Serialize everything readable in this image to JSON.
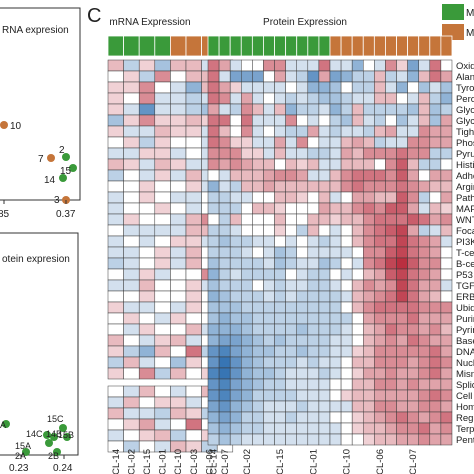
{
  "panel_letter": "C",
  "legend": {
    "items": [
      {
        "label": "ME",
        "color": "#3a9a3a"
      },
      {
        "label": "ME",
        "color": "#c5753a"
      }
    ]
  },
  "left_panels": {
    "top": {
      "title": "RNA expresion",
      "x_tick_labels": [
        "85",
        "0.37"
      ],
      "points": [
        {
          "label": "10",
          "group": "orange"
        },
        {
          "label": "7",
          "group": "orange"
        },
        {
          "label": "2",
          "group": "green"
        },
        {
          "label": "15",
          "group": "green"
        },
        {
          "label": "14",
          "group": "green"
        },
        {
          "label": "3",
          "group": "orange"
        }
      ]
    },
    "bottom": {
      "title": "otein expresion",
      "x_tick_labels": [
        "0.23",
        "0.24"
      ],
      "point_labels": [
        "A",
        "15C",
        "14C",
        "14B",
        "15B",
        "15A",
        "2A",
        "2B"
      ]
    }
  },
  "chart_data": {
    "type": "heatmap",
    "title": "",
    "blocks": [
      {
        "name": "mRNA Expression",
        "columns": [
          "CL-14",
          "CL-02",
          "CL-15",
          "CL-01",
          "CL-10",
          "CL-03",
          "CL-06",
          "CL-07"
        ]
      },
      {
        "name": "Protein Expression",
        "columns": [
          "CL-14",
          "",
          "",
          "CL-02",
          "",
          "",
          "CL-15",
          "",
          "",
          "CL-01",
          "",
          "",
          "CL-10",
          "",
          "",
          "CL-06",
          "",
          "",
          "CL-07",
          "",
          "",
          ""
        ]
      }
    ],
    "column_groups": {
      "mRNA Expression": [
        "green",
        "green",
        "green",
        "green",
        "orange",
        "orange",
        "orange",
        "orange"
      ],
      "Protein Expression": [
        "green",
        "green",
        "green",
        "green",
        "green",
        "green",
        "green",
        "green",
        "green",
        "green",
        "green",
        "orange",
        "orange",
        "orange",
        "orange",
        "orange",
        "orange",
        "orange",
        "orange",
        "orange",
        "orange",
        "orange"
      ]
    },
    "color_scale": {
      "low": "#2166ac",
      "mid": "#ffffff",
      "high": "#b2182b"
    },
    "rows": [
      "Oxidat",
      "Alanine",
      "Tyrosin",
      "Peroxis",
      "Glyoxy",
      "Glycer",
      "Tight ju",
      "Phosph",
      "Pyruva",
      "Histidin",
      "Adhere",
      "Arginin",
      "Pathwa",
      "MAPK",
      "WNT s",
      "Focal a",
      "PI3K-A",
      "T-cell r",
      "B-cell r",
      "P53 si",
      "TGFB",
      "ERBB",
      "Ubiquit",
      "Purine",
      "Pyrimic",
      "Base e",
      "DNA re",
      "Nucleo",
      "Mismat",
      "Splicec",
      "Cell cy",
      "Homolo",
      "Regula",
      "Terpen",
      "Pentos"
    ],
    "values": [
      [
        0.3,
        -0.3,
        0.2,
        -0.4,
        0.3,
        0.3,
        -0.2,
        0.2,
        0.6,
        0.4,
        -0.2,
        0.0,
        0.0,
        0.5,
        0.5,
        -0.2,
        -0.2,
        -0.2,
        0.6,
        -0.2,
        -0.2,
        -0.5,
        0.0,
        -0.2,
        0.5,
        0.2,
        -0.6,
        -0.2,
        0.6,
        0.0
      ],
      [
        0.0,
        0.2,
        -0.3,
        0.5,
        0.0,
        0.3,
        0.3,
        -0.2,
        0.6,
        -0.2,
        -0.6,
        -0.6,
        -0.6,
        0.0,
        0.4,
        -0.2,
        -0.3,
        -0.7,
        0.4,
        -0.6,
        -0.5,
        -0.3,
        -0.3,
        0.3,
        -0.3,
        -0.2,
        -0.5,
        0.3,
        0.6,
        0.4
      ],
      [
        0.2,
        0.2,
        0.5,
        0.0,
        -0.2,
        -0.5,
        0.3,
        0.0,
        0.6,
        0.4,
        0.2,
        -0.2,
        -0.2,
        -0.2,
        -0.2,
        0.0,
        -0.2,
        -0.5,
        -0.5,
        -0.4,
        0.0,
        -0.3,
        -0.3,
        0.3,
        -0.2,
        -0.5,
        0.0,
        -0.4,
        -0.2,
        -0.4
      ],
      [
        0.2,
        0.0,
        0.5,
        -0.2,
        -0.2,
        -0.3,
        -0.2,
        0.0,
        0.6,
        0.5,
        -0.2,
        0.4,
        -0.2,
        0.0,
        -0.2,
        -0.3,
        -0.2,
        -0.3,
        -0.4,
        -0.4,
        -0.3,
        -0.2,
        -0.2,
        0.3,
        0.3,
        0.0,
        -0.2,
        0.3,
        -0.3,
        -0.5
      ],
      [
        0.2,
        -0.2,
        -0.7,
        -0.2,
        -0.2,
        -0.3,
        -0.4,
        0.0,
        0.4,
        -0.2,
        -0.3,
        0.5,
        0.3,
        -0.2,
        0.3,
        -0.5,
        -0.3,
        -0.3,
        -0.2,
        -0.5,
        -0.3,
        0.3,
        -0.3,
        -0.3,
        -0.3,
        -0.3,
        -0.4,
        0.3,
        -0.4,
        -0.3
      ],
      [
        -0.4,
        0.2,
        0.5,
        0.2,
        0.2,
        0.3,
        0.2,
        -0.3,
        0.6,
        0.6,
        0.0,
        0.6,
        -0.2,
        -0.2,
        -0.2,
        0.5,
        0.0,
        -0.2,
        0.0,
        -0.3,
        -0.4,
        0.3,
        -0.2,
        -0.3,
        0.0,
        -0.4,
        -0.2,
        0.3,
        -0.4,
        0.4
      ],
      [
        0.2,
        -0.2,
        -0.2,
        0.3,
        0.2,
        0.2,
        -0.2,
        -0.2,
        0.6,
        0.3,
        0.0,
        0.5,
        -0.2,
        0.0,
        -0.2,
        -0.3,
        -0.3,
        0.4,
        -0.2,
        -0.3,
        -0.2,
        -0.2,
        -0.3,
        0.3,
        0.4,
        -0.2,
        -0.2,
        0.5,
        0.4,
        0.4
      ],
      [
        0.0,
        0.2,
        -0.3,
        0.2,
        0.0,
        0.0,
        -0.2,
        -0.2,
        0.6,
        0.5,
        0.2,
        0.2,
        -0.2,
        -0.2,
        0.4,
        -0.2,
        0.5,
        0.0,
        -0.2,
        -0.2,
        0.3,
        0.4,
        0.3,
        -0.3,
        -0.2,
        -0.2,
        0.5,
        0.5,
        0.4,
        0.4
      ],
      [
        -0.2,
        -0.2,
        0.2,
        0.2,
        -0.2,
        0.0,
        -0.2,
        0.5,
        0.5,
        0.5,
        0.5,
        0.2,
        0.2,
        -0.2,
        0.3,
        -0.2,
        -0.2,
        -0.3,
        -0.3,
        -0.2,
        0.4,
        0.3,
        0.5,
        0.5,
        0.5,
        0.6,
        0.5,
        0.5,
        -0.3,
        -0.3
      ],
      [
        0.3,
        0.2,
        -0.2,
        0.3,
        0.2,
        -0.2,
        -0.2,
        -0.2,
        0.5,
        0.4,
        0.5,
        0.4,
        0.3,
        0.3,
        0.0,
        0.3,
        0.2,
        0.3,
        -0.2,
        -0.2,
        0.3,
        0.3,
        0.3,
        0.0,
        0.5,
        0.7,
        0.3,
        -0.3,
        -0.3,
        0.0
      ],
      [
        -0.3,
        0.0,
        -0.2,
        0.2,
        -0.2,
        0.3,
        -0.2,
        -0.2,
        0.0,
        -0.2,
        0.3,
        0.3,
        0.3,
        0.4,
        0.5,
        0.5,
        0.4,
        -0.2,
        -0.2,
        0.3,
        0.5,
        0.6,
        0.6,
        0.6,
        0.5,
        0.7,
        0.4,
        0.0,
        0.4,
        0.4
      ],
      [
        0.0,
        0.0,
        0.2,
        0.0,
        0.0,
        0.2,
        -0.2,
        -0.2,
        -0.5,
        -0.2,
        -0.3,
        0.3,
        0.3,
        0.4,
        0.3,
        0.3,
        0.3,
        0.3,
        0.3,
        0.3,
        0.5,
        0.6,
        0.5,
        0.5,
        0.5,
        0.6,
        0.5,
        0.4,
        0.3,
        0.3
      ],
      [
        -0.2,
        0.0,
        0.2,
        0.0,
        -0.2,
        -0.2,
        0.0,
        0.2,
        -0.3,
        -0.3,
        -0.2,
        -0.2,
        0.0,
        0.0,
        0.3,
        0.3,
        0.2,
        0.0,
        0.3,
        -0.2,
        0.0,
        0.4,
        0.4,
        0.3,
        0.3,
        0.7,
        0.5,
        -0.3,
        0.0,
        0.4
      ],
      [
        -0.2,
        0.0,
        0.0,
        0.2,
        0.0,
        -0.2,
        0.0,
        0.2,
        -0.3,
        -0.3,
        -0.3,
        0.0,
        0.3,
        0.3,
        0.2,
        0.0,
        0.0,
        0.0,
        0.4,
        0.3,
        0.3,
        0.5,
        0.6,
        0.5,
        0.7,
        0.7,
        0.4,
        -0.2,
        0.3,
        0.2
      ],
      [
        -0.2,
        0.2,
        0.0,
        0.0,
        -0.2,
        0.3,
        0.5,
        -0.2,
        0.0,
        -0.3,
        0.3,
        0.0,
        0.0,
        0.0,
        0.3,
        0.0,
        0.0,
        0.3,
        0.3,
        0.2,
        0.3,
        0.3,
        0.5,
        0.6,
        0.6,
        0.6,
        0.7,
        0.6,
        0.4,
        0.5
      ],
      [
        0.0,
        -0.2,
        -0.2,
        -0.2,
        -0.2,
        0.3,
        0.3,
        -0.2,
        -0.3,
        -0.3,
        -0.2,
        0.0,
        0.0,
        0.0,
        0.2,
        0.0,
        -0.3,
        0.3,
        0.0,
        -0.2,
        0.0,
        0.3,
        0.5,
        0.6,
        0.7,
        0.8,
        0.4,
        -0.3,
        -0.2,
        0.3
      ],
      [
        -0.2,
        0.0,
        -0.2,
        0.0,
        0.2,
        0.2,
        -0.2,
        0.0,
        -0.3,
        -0.4,
        -0.3,
        -0.3,
        -0.2,
        -0.2,
        0.0,
        -0.2,
        0.0,
        -0.2,
        -0.3,
        -0.2,
        0.0,
        0.3,
        0.5,
        0.6,
        0.6,
        0.8,
        0.6,
        0.5,
        0.4,
        -0.2
      ],
      [
        -0.2,
        -0.2,
        0.0,
        0.2,
        -0.2,
        0.3,
        0.0,
        0.0,
        -0.3,
        -0.3,
        -0.3,
        -0.2,
        0.0,
        -0.2,
        -0.4,
        -0.3,
        0.0,
        -0.2,
        -0.2,
        -0.2,
        -0.2,
        0.0,
        0.5,
        0.5,
        0.7,
        0.8,
        0.6,
        0.5,
        0.4,
        0.0
      ],
      [
        -0.3,
        -0.2,
        0.0,
        0.2,
        -0.2,
        0.3,
        0.0,
        0.0,
        -0.4,
        -0.3,
        -0.3,
        -0.3,
        -0.3,
        -0.2,
        -0.4,
        -0.3,
        -0.2,
        -0.2,
        -0.4,
        -0.3,
        0.0,
        -0.2,
        0.5,
        0.6,
        0.8,
        0.9,
        0.7,
        0.5,
        0.5,
        0.0
      ],
      [
        0.0,
        -0.2,
        0.2,
        -0.2,
        0.0,
        0.0,
        0.5,
        -0.2,
        -0.5,
        -0.3,
        -0.2,
        -0.3,
        -0.3,
        -0.3,
        -0.3,
        0.0,
        -0.2,
        -0.3,
        -0.3,
        0.0,
        -0.2,
        0.0,
        0.3,
        0.4,
        0.7,
        0.8,
        0.6,
        0.5,
        0.4,
        0.0
      ],
      [
        -0.2,
        -0.2,
        0.3,
        0.0,
        0.0,
        0.2,
        -0.2,
        -0.2,
        -0.4,
        -0.3,
        -0.3,
        -0.3,
        0.0,
        -0.2,
        -0.3,
        -0.2,
        -0.2,
        -0.3,
        -0.3,
        -0.2,
        0.0,
        0.3,
        0.5,
        0.4,
        0.5,
        0.8,
        0.6,
        0.4,
        0.4,
        -0.2
      ],
      [
        0.0,
        0.0,
        0.2,
        0.0,
        0.0,
        0.2,
        0.0,
        0.0,
        -0.5,
        -0.4,
        -0.3,
        -0.3,
        -0.3,
        -0.2,
        -0.3,
        -0.2,
        -0.3,
        -0.3,
        -0.3,
        -0.3,
        -0.2,
        0.3,
        0.4,
        0.5,
        0.6,
        0.8,
        0.6,
        0.4,
        0.3,
        0.0
      ],
      [
        0.2,
        -0.2,
        -0.2,
        0.0,
        -0.2,
        0.2,
        0.0,
        -0.2,
        -0.4,
        -0.4,
        -0.4,
        -0.3,
        -0.3,
        -0.3,
        -0.3,
        -0.3,
        -0.3,
        -0.3,
        -0.3,
        -0.3,
        0.0,
        0.3,
        0.5,
        0.6,
        0.6,
        0.6,
        0.6,
        0.5,
        0.5,
        0.5
      ],
      [
        0.0,
        0.2,
        0.0,
        -0.2,
        0.2,
        0.0,
        0.0,
        0.2,
        -0.4,
        -0.5,
        -0.4,
        -0.4,
        -0.3,
        -0.3,
        -0.3,
        -0.3,
        -0.3,
        -0.3,
        -0.3,
        -0.3,
        -0.3,
        0.0,
        0.4,
        0.5,
        0.5,
        0.5,
        0.6,
        0.4,
        0.4,
        0.4
      ],
      [
        0.0,
        -0.2,
        0.2,
        0.0,
        0.0,
        0.3,
        -0.2,
        0.0,
        -0.5,
        -0.5,
        -0.5,
        -0.4,
        -0.3,
        -0.3,
        -0.3,
        -0.3,
        -0.4,
        -0.3,
        -0.3,
        -0.3,
        -0.2,
        0.0,
        0.3,
        0.4,
        0.6,
        0.5,
        0.5,
        0.4,
        0.5,
        0.3
      ],
      [
        0.3,
        0.0,
        -0.2,
        0.2,
        0.3,
        -0.2,
        0.0,
        0.2,
        -0.5,
        -0.6,
        -0.6,
        -0.5,
        -0.4,
        -0.3,
        -0.4,
        -0.3,
        -0.3,
        -0.3,
        -0.3,
        -0.2,
        -0.2,
        0.0,
        0.3,
        0.4,
        0.5,
        0.4,
        0.6,
        0.5,
        0.4,
        0.4
      ],
      [
        0.2,
        -0.3,
        -0.5,
        0.3,
        0.0,
        0.6,
        -0.3,
        0.2,
        -0.7,
        -0.8,
        -0.6,
        -0.5,
        -0.4,
        -0.4,
        -0.3,
        -0.3,
        -0.4,
        -0.3,
        -0.3,
        -0.2,
        -0.2,
        0.2,
        0.3,
        0.5,
        0.5,
        0.5,
        0.5,
        0.5,
        0.6,
        0.4
      ],
      [
        -0.3,
        0.3,
        -0.2,
        0.0,
        -0.4,
        0.2,
        0.0,
        -0.2,
        -0.7,
        -0.9,
        -0.7,
        -0.5,
        -0.4,
        -0.3,
        -0.3,
        -0.3,
        -0.2,
        -0.3,
        -0.2,
        -0.2,
        0.0,
        0.3,
        0.3,
        0.5,
        0.5,
        0.5,
        0.4,
        0.5,
        0.6,
        0.5
      ],
      [
        0.2,
        0.0,
        0.5,
        -0.3,
        0.3,
        0.0,
        0.2,
        0.0,
        -0.8,
        -0.9,
        -0.7,
        -0.5,
        -0.4,
        -0.4,
        -0.3,
        -0.2,
        -0.2,
        -0.2,
        -0.3,
        -0.2,
        0.0,
        0.2,
        0.4,
        0.4,
        0.5,
        0.4,
        0.4,
        0.5,
        0.6,
        0.4
      ],
      [
        0.0,
        -0.2,
        0.3,
        0.0,
        -0.2,
        0.0,
        0.3,
        -0.3,
        -0.7,
        -0.8,
        -0.6,
        -0.5,
        -0.4,
        -0.3,
        -0.3,
        -0.2,
        -0.2,
        -0.2,
        -0.2,
        0.0,
        0.0,
        0.3,
        0.3,
        0.5,
        0.5,
        0.4,
        0.5,
        0.4,
        0.4,
        0.4
      ],
      [
        -0.2,
        0.3,
        0.0,
        0.2,
        0.2,
        -0.2,
        0.0,
        0.0,
        -0.7,
        -0.8,
        -0.6,
        -0.5,
        -0.3,
        -0.3,
        -0.3,
        -0.3,
        -0.2,
        -0.2,
        -0.2,
        0.0,
        0.2,
        0.3,
        0.3,
        0.4,
        0.4,
        0.4,
        0.4,
        0.5,
        0.6,
        0.5
      ],
      [
        0.3,
        -0.2,
        -0.2,
        -0.3,
        0.3,
        0.2,
        -0.3,
        0.3,
        -0.6,
        -0.7,
        -0.5,
        -0.4,
        -0.3,
        -0.2,
        -0.2,
        -0.2,
        -0.3,
        -0.2,
        -0.2,
        -0.2,
        -0.2,
        0.3,
        0.3,
        0.5,
        0.5,
        0.4,
        0.4,
        0.5,
        0.5,
        0.4
      ],
      [
        0.0,
        0.2,
        0.4,
        -0.2,
        0.0,
        0.6,
        0.0,
        0.2,
        -0.5,
        -0.6,
        -0.5,
        -0.3,
        -0.3,
        -0.2,
        -0.2,
        -0.3,
        -0.2,
        -0.2,
        -0.2,
        0.0,
        0.0,
        0.2,
        0.3,
        0.4,
        0.5,
        0.6,
        0.5,
        0.4,
        0.5,
        0.6
      ],
      [
        -0.2,
        0.0,
        0.2,
        0.3,
        -0.3,
        0.0,
        0.2,
        -0.2,
        -0.4,
        -0.5,
        -0.4,
        -0.3,
        -0.3,
        -0.2,
        -0.2,
        -0.2,
        -0.2,
        -0.2,
        -0.2,
        -0.2,
        0.0,
        0.2,
        0.3,
        0.3,
        0.4,
        0.5,
        0.5,
        0.6,
        0.4,
        0.5
      ],
      [
        0.0,
        -0.3,
        0.0,
        -0.2,
        0.3,
        0.2,
        -0.3,
        0.0,
        -0.3,
        -0.4,
        -0.3,
        -0.2,
        -0.2,
        -0.2,
        -0.2,
        -0.2,
        -0.2,
        -0.2,
        -0.2,
        -0.2,
        0.0,
        0.0,
        0.2,
        0.3,
        0.3,
        0.4,
        0.4,
        0.5,
        0.4,
        0.4
      ]
    ]
  }
}
